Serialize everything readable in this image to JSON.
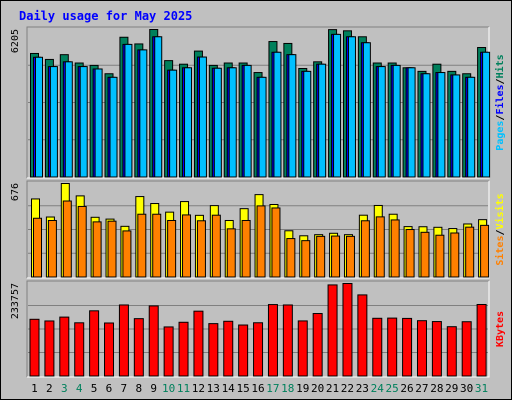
{
  "title": "Daily usage for May 2025",
  "colors": {
    "background": "#c0c0c0",
    "title": "#0000ff",
    "hits": "#00805c",
    "files": "#0000ff",
    "pages": "#00c0ff",
    "visits": "#ffff00",
    "sites": "#ff8000",
    "kbytes": "#ff0000",
    "weekend_day_label": "#00805c",
    "weekday_label": "#000000"
  },
  "panels": {
    "top": {
      "max_label": "6205",
      "legend": [
        {
          "text": "Pages",
          "color": "#00c0ff"
        },
        {
          "text": "/",
          "color": "#000000"
        },
        {
          "text": "Files",
          "color": "#0000ff"
        },
        {
          "text": "/",
          "color": "#000000"
        },
        {
          "text": "Hits",
          "color": "#00805c"
        }
      ]
    },
    "middle": {
      "max_label": "676",
      "legend": [
        {
          "text": "Sites",
          "color": "#ff8000"
        },
        {
          "text": "/",
          "color": "#000000"
        },
        {
          "text": "Visits",
          "color": "#ffff00"
        }
      ]
    },
    "bottom": {
      "max_label": "233757",
      "legend": [
        {
          "text": "KBytes",
          "color": "#ff0000"
        }
      ]
    }
  },
  "chart_data": {
    "type": "bar",
    "title": "Daily usage for May 2025",
    "categories": [
      "1",
      "2",
      "3",
      "4",
      "5",
      "6",
      "7",
      "8",
      "9",
      "10",
      "11",
      "12",
      "13",
      "14",
      "15",
      "16",
      "17",
      "18",
      "19",
      "20",
      "21",
      "22",
      "23",
      "24",
      "25",
      "26",
      "27",
      "28",
      "29",
      "30",
      "31"
    ],
    "weekend_days": [
      "3",
      "4",
      "10",
      "11",
      "17",
      "18",
      "24",
      "25",
      "31"
    ],
    "panels": [
      {
        "name": "top",
        "ylim": [
          0,
          6205
        ],
        "series": [
          {
            "name": "Hits",
            "values": [
              5200,
              4950,
              5150,
              4800,
              4700,
              4350,
              5880,
              5600,
              6205,
              4900,
              4750,
              5300,
              4700,
              4800,
              4800,
              4400,
              5700,
              5620,
              4570,
              4850,
              6200,
              6150,
              5900,
              4800,
              4800,
              4600,
              4450,
              4750,
              4450,
              4350,
              5450
            ]
          },
          {
            "name": "Files",
            "values": [
              5040,
              4650,
              4850,
              4650,
              4550,
              4200,
              5580,
              5350,
              5900,
              4500,
              4600,
              5050,
              4580,
              4600,
              4700,
              4200,
              5250,
              5150,
              4450,
              4750,
              6000,
              5900,
              5650,
              4650,
              4700,
              4600,
              4350,
              4400,
              4300,
              4200,
              5250
            ]
          },
          {
            "name": "Pages",
            "values": [
              5040,
              4650,
              4850,
              4650,
              4550,
              4200,
              5580,
              5350,
              5900,
              4500,
              4600,
              5050,
              4580,
              4600,
              4700,
              4200,
              5250,
              5150,
              4450,
              4750,
              6000,
              5900,
              5650,
              4650,
              4700,
              4600,
              4350,
              4400,
              4300,
              4200,
              5250
            ]
          }
        ]
      },
      {
        "name": "middle",
        "ylim": [
          0,
          676
        ],
        "series": [
          {
            "name": "Visits",
            "values": [
              565,
              435,
              676,
              587,
              433,
              420,
              368,
              582,
              532,
              470,
              546,
              447,
              517,
              410,
              495,
              596,
              525,
              336,
              300,
              308,
              318,
              308,
              448,
              518,
              455,
              366,
              365,
              361,
              352,
              385,
              416
            ]
          },
          {
            "name": "Sites",
            "values": [
              426,
              410,
              550,
              511,
              400,
              405,
              335,
              455,
              455,
              410,
              450,
              408,
              448,
              350,
              410,
              515,
              500,
              280,
              265,
              296,
              298,
              296,
              408,
              436,
              414,
              345,
              325,
              304,
              320,
              362,
              375
            ]
          }
        ]
      },
      {
        "name": "bottom",
        "ylim": [
          0,
          233757
        ],
        "series": [
          {
            "name": "KBytes",
            "values": [
              143800,
              139600,
              149300,
              135000,
              165100,
              134500,
              179800,
              145400,
              177400,
              124600,
              136300,
              164200,
              132900,
              138800,
              129400,
              135100,
              180800,
              179800,
              139700,
              158300,
              230200,
              233757,
              205100,
              146300,
              146800,
              146000,
              140300,
              138100,
              125200,
              137700,
              181000
            ]
          }
        ]
      }
    ]
  }
}
